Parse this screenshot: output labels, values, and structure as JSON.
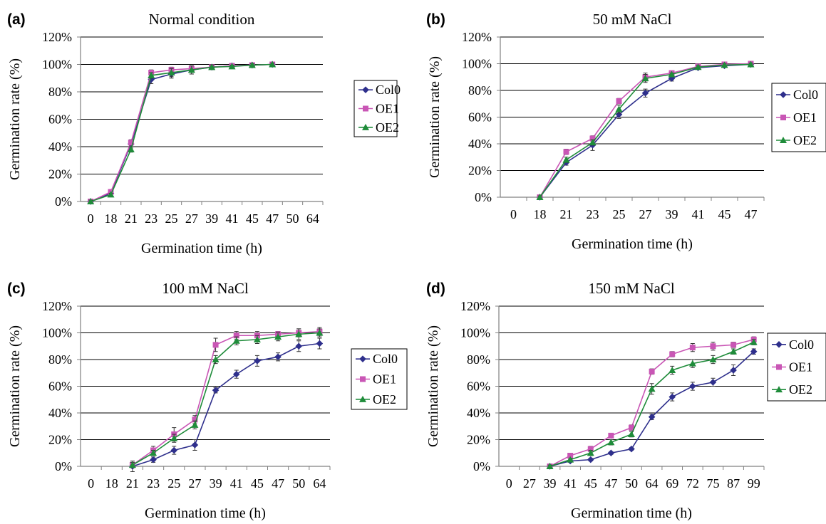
{
  "colors": {
    "Col0": "#2e2f8c",
    "OE1": "#c956b5",
    "OE2": "#1f8c3a",
    "grid": "#000000",
    "axis": "#808080"
  },
  "chart_data": [
    {
      "panel_label": "(a)",
      "type": "line",
      "title": "Normal condition",
      "xlabel": "Germination time (h)",
      "ylabel": "Germination rate (%)",
      "categories": [
        "0",
        "18",
        "21",
        "23",
        "25",
        "27",
        "39",
        "41",
        "45",
        "47",
        "50",
        "64"
      ],
      "y_ticks": [
        "0%",
        "20%",
        "40%",
        "60%",
        "80%",
        "100%",
        "120%"
      ],
      "ylim": [
        0,
        120
      ],
      "grid": "horizontal",
      "legend_position": "right",
      "series": [
        {
          "name": "Col0",
          "marker": "diamond",
          "values": [
            0,
            6,
            42,
            89,
            93,
            96,
            98,
            99,
            99.5,
            100,
            null,
            null
          ],
          "errors": [
            1,
            1,
            3,
            3,
            3,
            3,
            1,
            1,
            1,
            1,
            null,
            null
          ]
        },
        {
          "name": "OE1",
          "marker": "square",
          "values": [
            0,
            7,
            43,
            94,
            96,
            97,
            98,
            99,
            99.5,
            100,
            null,
            null
          ],
          "errors": [
            1,
            1,
            2,
            2,
            2,
            2,
            1,
            1,
            1,
            1,
            null,
            null
          ]
        },
        {
          "name": "OE2",
          "marker": "triangle",
          "values": [
            0,
            5,
            38,
            92,
            94,
            96,
            98,
            98.5,
            99.5,
            100,
            null,
            null
          ],
          "errors": [
            1,
            1,
            2,
            2,
            3,
            3,
            1,
            1,
            1,
            1,
            null,
            null
          ]
        }
      ]
    },
    {
      "panel_label": "(b)",
      "type": "line",
      "title": "50 mM NaCl",
      "xlabel": "Germination time (h)",
      "ylabel": "Germination rate (%)",
      "categories": [
        "0",
        "18",
        "21",
        "23",
        "25",
        "27",
        "39",
        "41",
        "45",
        "47"
      ],
      "y_ticks": [
        "0%",
        "20%",
        "40%",
        "60%",
        "80%",
        "100%",
        "120%"
      ],
      "ylim": [
        0,
        120
      ],
      "grid": "horizontal",
      "legend_position": "right",
      "series": [
        {
          "name": "Col0",
          "marker": "diamond",
          "values": [
            null,
            0,
            26,
            39,
            62,
            78,
            89,
            97,
            98.5,
            99.5
          ],
          "errors": [
            null,
            1,
            2,
            4,
            3,
            3,
            2,
            1,
            1,
            1
          ]
        },
        {
          "name": "OE1",
          "marker": "square",
          "values": [
            null,
            0,
            34,
            44,
            72,
            90,
            93,
            98,
            99.5,
            100
          ],
          "errors": [
            null,
            1,
            2,
            2,
            2,
            3,
            1,
            1,
            1,
            1
          ]
        },
        {
          "name": "OE2",
          "marker": "triangle",
          "values": [
            null,
            0,
            28,
            41,
            66,
            89,
            92,
            97.5,
            99,
            99.5
          ],
          "errors": [
            null,
            1,
            2,
            2,
            3,
            3,
            1,
            1,
            1,
            1
          ]
        }
      ]
    },
    {
      "panel_label": "(c)",
      "type": "line",
      "title": "100 mM NaCl",
      "xlabel": "Germination time (h)",
      "ylabel": "Germination rate (%)",
      "categories": [
        "0",
        "18",
        "21",
        "23",
        "25",
        "27",
        "39",
        "41",
        "45",
        "47",
        "50",
        "64"
      ],
      "y_ticks": [
        "0%",
        "20%",
        "40%",
        "60%",
        "80%",
        "100%",
        "120%"
      ],
      "ylim": [
        0,
        120
      ],
      "grid": "horizontal",
      "legend_position": "right",
      "series": [
        {
          "name": "Col0",
          "marker": "diamond",
          "values": [
            null,
            null,
            0,
            5,
            12,
            16,
            57,
            69,
            79,
            82,
            90,
            92
          ],
          "errors": [
            null,
            null,
            4,
            2,
            3,
            4,
            2,
            3,
            4,
            3,
            4,
            4
          ]
        },
        {
          "name": "OE1",
          "marker": "square",
          "values": [
            null,
            null,
            1,
            12,
            24,
            35,
            91,
            98,
            98,
            99,
            100,
            101
          ],
          "errors": [
            null,
            null,
            2,
            3,
            5,
            3,
            5,
            3,
            3,
            2,
            3,
            3
          ]
        },
        {
          "name": "OE2",
          "marker": "triangle",
          "values": [
            null,
            null,
            1,
            10,
            21,
            31,
            80,
            94,
            95,
            97,
            99,
            100
          ],
          "errors": [
            null,
            null,
            2,
            2,
            3,
            3,
            3,
            3,
            3,
            3,
            4,
            3
          ]
        }
      ]
    },
    {
      "panel_label": "(d)",
      "type": "line",
      "title": "150 mM NaCl",
      "xlabel": "Germination time (h)",
      "ylabel": "Germination rate (%)",
      "categories": [
        "0",
        "27",
        "39",
        "41",
        "45",
        "47",
        "50",
        "64",
        "69",
        "72",
        "75",
        "87",
        "99"
      ],
      "y_ticks": [
        "0%",
        "20%",
        "40%",
        "60%",
        "80%",
        "100%",
        "120%"
      ],
      "ylim": [
        0,
        120
      ],
      "grid": "horizontal",
      "legend_position": "right",
      "series": [
        {
          "name": "Col0",
          "marker": "diamond",
          "values": [
            null,
            null,
            0,
            4,
            5,
            10,
            13,
            37,
            52,
            60,
            63,
            72,
            86
          ],
          "errors": [
            null,
            null,
            1,
            1,
            1,
            1,
            1,
            2,
            3,
            3,
            3,
            4,
            2
          ]
        },
        {
          "name": "OE1",
          "marker": "square",
          "values": [
            null,
            null,
            0,
            8,
            13,
            23,
            29,
            71,
            84,
            89,
            90,
            91,
            95
          ],
          "errors": [
            null,
            null,
            1,
            1,
            2,
            1,
            2,
            2,
            2,
            3,
            3,
            2,
            2
          ]
        },
        {
          "name": "OE2",
          "marker": "triangle",
          "values": [
            null,
            null,
            0,
            5,
            10,
            18,
            24,
            58,
            72,
            77,
            80,
            86,
            93
          ],
          "errors": [
            null,
            null,
            1,
            1,
            2,
            2,
            2,
            4,
            3,
            3,
            3,
            2,
            2
          ]
        }
      ]
    }
  ]
}
